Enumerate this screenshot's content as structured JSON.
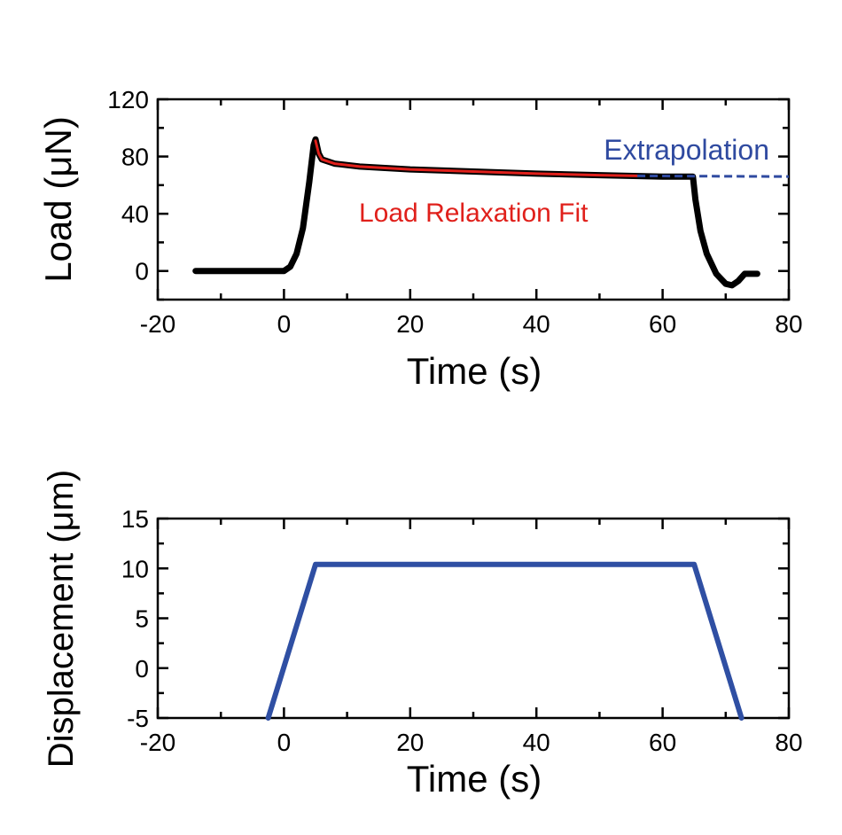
{
  "chart_data": [
    {
      "type": "line",
      "xlabel": "Time (s)",
      "ylabel": "Load (μN)",
      "xlim": [
        -20,
        80
      ],
      "ylim": [
        -20,
        120
      ],
      "xticks": [
        -20,
        0,
        20,
        40,
        60,
        80
      ],
      "yticks": [
        0,
        40,
        80,
        120
      ],
      "grid": false,
      "series": [
        {
          "color": "#000000",
          "style": "solid-thick",
          "x": [
            -14,
            -5,
            0,
            1,
            2,
            3,
            4,
            4.7,
            5,
            5.5,
            6,
            8,
            12,
            20,
            30,
            40,
            50,
            60,
            64.8,
            65.2,
            66,
            67,
            68.5,
            70,
            71,
            72,
            73,
            75
          ],
          "y": [
            0,
            0,
            0,
            3,
            12,
            30,
            62,
            88,
            92,
            82,
            78,
            75,
            73,
            71,
            69.5,
            68,
            67,
            66,
            66,
            50,
            28,
            12,
            -2,
            -9,
            -10,
            -7,
            -2,
            -2
          ]
        },
        {
          "name": "Load Relaxation Fit",
          "color": "#e0201b",
          "style": "solid",
          "x": [
            5,
            5.5,
            6,
            8,
            12,
            20,
            30,
            40,
            50,
            56
          ],
          "y": [
            91,
            82,
            78,
            75,
            73,
            71,
            69.5,
            68,
            67,
            66.5
          ]
        },
        {
          "name": "Extrapolation",
          "color": "#2f4aa0",
          "style": "dashed",
          "x": [
            56,
            80
          ],
          "y": [
            66.5,
            66
          ]
        }
      ],
      "annotations": [
        {
          "text": "Extrapolation",
          "color": "#2f4aa0"
        },
        {
          "text": "Load Relaxation Fit",
          "color": "#e0201b"
        }
      ]
    },
    {
      "type": "line",
      "xlabel": "Time (s)",
      "ylabel": "Displacement (μm)",
      "xlim": [
        -20,
        80
      ],
      "ylim": [
        -5,
        15
      ],
      "xticks": [
        -20,
        0,
        20,
        40,
        60,
        80
      ],
      "yticks": [
        -5,
        0,
        5,
        10,
        15
      ],
      "grid": false,
      "series": [
        {
          "color": "#2f4fa3",
          "style": "solid-thick",
          "x": [
            -2.5,
            5,
            65,
            72.5
          ],
          "y": [
            -5,
            10.4,
            10.4,
            -5
          ]
        }
      ]
    }
  ]
}
